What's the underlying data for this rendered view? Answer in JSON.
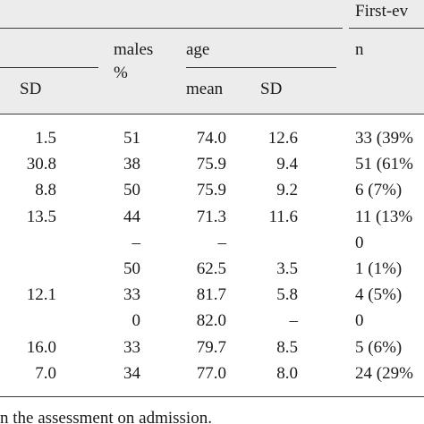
{
  "header": {
    "group_title": "First-ev",
    "males_label_top": "males",
    "males_label_bottom": "%",
    "age_label": "age",
    "n_label": "n",
    "sd_label": "SD",
    "mean_label": "mean",
    "sd2_label": "SD"
  },
  "rows": [
    {
      "sd": "1.5",
      "males": "51",
      "mean": "74.0",
      "sd2": "12.6",
      "first": "33 (39%"
    },
    {
      "sd": "30.8",
      "males": "38",
      "mean": "75.9",
      "sd2": "9.4",
      "first": "51 (61%"
    },
    {
      "sd": "8.8",
      "males": "50",
      "mean": "75.9",
      "sd2": "9.2",
      "first": "6 (7%)"
    },
    {
      "sd": "13.5",
      "males": "44",
      "mean": "71.3",
      "sd2": "11.6",
      "first": "11 (13%"
    },
    {
      "sd": "",
      "males": "–",
      "mean": "–",
      "sd2": "",
      "first": "0"
    },
    {
      "sd": "",
      "males": "50",
      "mean": "62.5",
      "sd2": "3.5",
      "first": "1 (1%)"
    },
    {
      "sd": "12.1",
      "males": "33",
      "mean": "81.7",
      "sd2": "5.8",
      "first": "4 (5%)"
    },
    {
      "sd": "",
      "males": "0",
      "mean": "82.0",
      "sd2": "–",
      "first": "0"
    },
    {
      "sd": "16.0",
      "males": "33",
      "mean": "79.7",
      "sd2": "8.5",
      "first": "5 (6%)"
    },
    {
      "sd": "7.0",
      "males": "34",
      "mean": "77.0",
      "sd2": "8.0",
      "first": "24 (29%"
    }
  ],
  "footnote": "n the assessment on admission."
}
